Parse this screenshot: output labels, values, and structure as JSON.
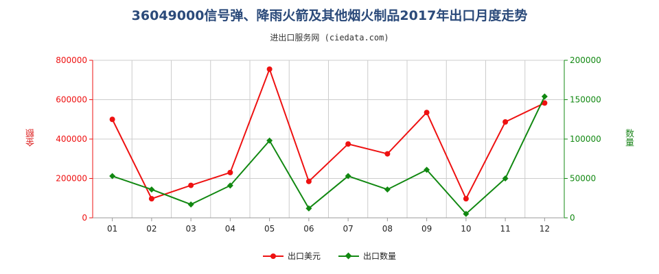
{
  "title": "36049000信号弹、降雨火箭及其他烟火制品2017年出口月度走势",
  "subtitle": "进出口服务网 (ciedata.com)",
  "colors": {
    "left_series": "#ee1111",
    "right_series": "#118811",
    "grid": "#cccccc",
    "title": "#2b4a7a"
  },
  "chart_data": {
    "type": "line",
    "categories": [
      "01",
      "02",
      "03",
      "04",
      "05",
      "06",
      "07",
      "08",
      "09",
      "10",
      "11",
      "12"
    ],
    "ylabel_left": "金额",
    "ylabel_right": "数量",
    "ylim_left": [
      0,
      800000
    ],
    "ylim_right": [
      0,
      200000
    ],
    "yticks_left": [
      "0",
      "200000",
      "400000",
      "600000",
      "800000"
    ],
    "yticks_right": [
      "0",
      "50000",
      "100000",
      "150000",
      "200000"
    ],
    "grid": true,
    "legend_position": "bottom",
    "series": [
      {
        "name": "出口美元",
        "axis": "left",
        "color": "#ee1111",
        "marker": "circle",
        "values": [
          500000,
          97000,
          165000,
          230000,
          755000,
          185000,
          375000,
          325000,
          535000,
          97000,
          487000,
          583000
        ]
      },
      {
        "name": "出口数量",
        "axis": "right",
        "color": "#118811",
        "marker": "diamond",
        "values": [
          53000,
          36000,
          17000,
          41000,
          98000,
          12000,
          53000,
          36000,
          61000,
          5000,
          50000,
          154000
        ]
      }
    ]
  }
}
